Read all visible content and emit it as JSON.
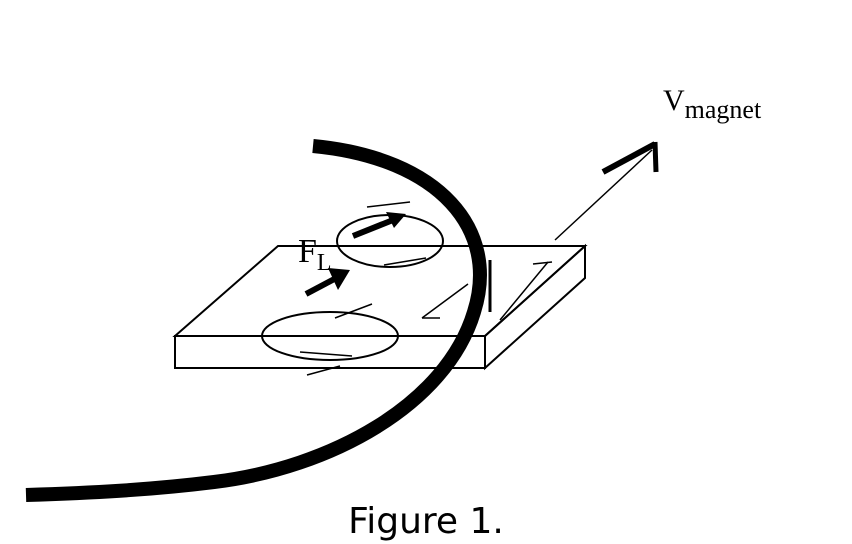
{
  "labels": {
    "velocity_main": "V",
    "velocity_sub": "magnet",
    "force_main": "F",
    "force_sub": "L"
  },
  "caption": "Figure 1.",
  "colors": {
    "ink": "#000000",
    "background": "#ffffff"
  }
}
